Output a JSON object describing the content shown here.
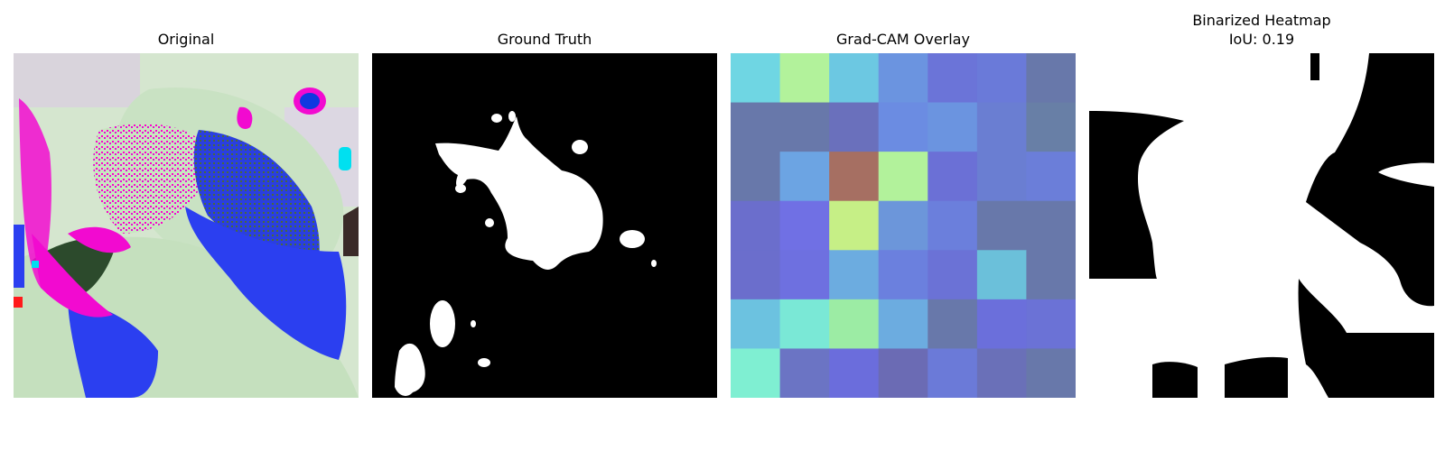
{
  "figure": {
    "panels": [
      {
        "title": "Original",
        "content": "augmented leaf photograph"
      },
      {
        "title": "Ground Truth",
        "content": "binary lesion mask"
      },
      {
        "title": "Grad-CAM Overlay",
        "content": "7x7 activation heatmap overlay"
      },
      {
        "title": "Binarized Heatmap\nIoU: 0.19",
        "content": "thresholded heatmap mask"
      }
    ]
  },
  "gradcam_grid": {
    "rows": 7,
    "cols": 7,
    "colors": [
      [
        "#6fd6e3",
        "#b2f29b",
        "#6cc8e2",
        "#6b94e0",
        "#6b74d8",
        "#6a7ad9",
        "#6878aa"
      ],
      [
        "#6878aa",
        "#6878aa",
        "#6a70bc",
        "#6b8ce2",
        "#6b94e0",
        "#6a7ed2",
        "#687fa6"
      ],
      [
        "#6878aa",
        "#6ca4e3",
        "#a66f62",
        "#b2f29b",
        "#6b70d6",
        "#6a7ed2",
        "#6b7ed9"
      ],
      [
        "#6b6ecc",
        "#7070e4",
        "#c6ef86",
        "#6c96da",
        "#6b7fdc",
        "#6878aa",
        "#6878aa"
      ],
      [
        "#6b6ecc",
        "#6e70e0",
        "#6cace0",
        "#6b80de",
        "#6b72d6",
        "#6bc0da",
        "#6878aa"
      ],
      [
        "#6cc2e0",
        "#7ae8d6",
        "#9ceca4",
        "#6cace0",
        "#6878aa",
        "#6b6fdb",
        "#6b72d6"
      ],
      [
        "#7fefd2",
        "#6b74c4",
        "#6b6ddc",
        "#6b6bb4",
        "#6b7ad8",
        "#6a70b8",
        "#6878aa"
      ]
    ]
  }
}
